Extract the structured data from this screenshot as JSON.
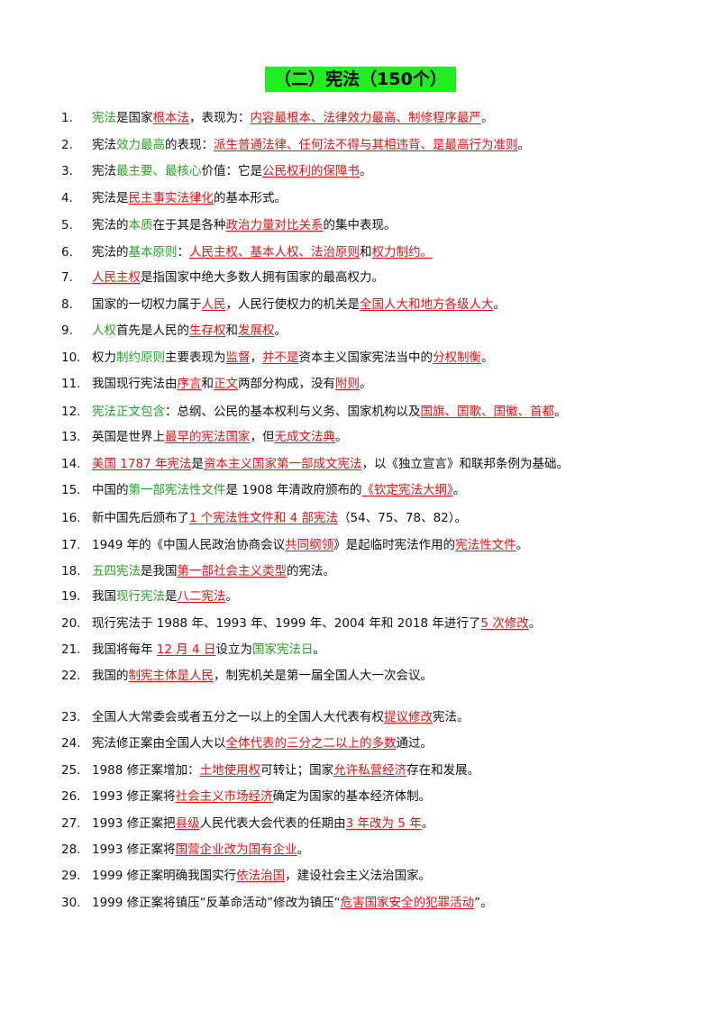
{
  "title": "（二）宪法（150个）",
  "colors": {
    "highlight": "#22ee22",
    "green": "#22a622",
    "red": "#ee1111"
  },
  "items": [
    {
      "num": "1.",
      "segs": [
        [
          "g",
          "宪法"
        ],
        [
          "n",
          "是国家"
        ],
        [
          "r",
          "根本法"
        ],
        [
          "n",
          "，表现为："
        ],
        [
          "r",
          "内容最根本、法律效力最高、制修程序最严"
        ],
        [
          "n",
          "。"
        ]
      ]
    },
    {
      "num": "2.",
      "segs": [
        [
          "n",
          "宪法"
        ],
        [
          "g",
          "效力最高"
        ],
        [
          "n",
          "的表现："
        ],
        [
          "r",
          "派生普通法律、任何法不得与其相违背、是最高行为准则"
        ],
        [
          "n",
          "。"
        ]
      ]
    },
    {
      "num": "3.",
      "segs": [
        [
          "n",
          "宪法"
        ],
        [
          "g",
          "最主要、最核心"
        ],
        [
          "n",
          "价值：它是"
        ],
        [
          "r",
          "公民权利的保障书"
        ],
        [
          "n",
          "。"
        ]
      ]
    },
    {
      "num": "4.",
      "segs": [
        [
          "n",
          "宪法是"
        ],
        [
          "r",
          "民主事实法律化"
        ],
        [
          "n",
          "的基本形式。"
        ]
      ]
    },
    {
      "num": "5.",
      "segs": [
        [
          "n",
          "宪法的"
        ],
        [
          "g",
          "本质"
        ],
        [
          "n",
          "在于其是各种"
        ],
        [
          "r",
          "政治力量对比关系"
        ],
        [
          "n",
          "的集中表现。"
        ]
      ]
    },
    {
      "num": "6.",
      "segs": [
        [
          "n",
          "宪法的"
        ],
        [
          "g",
          "基本原则"
        ],
        [
          "n",
          "："
        ],
        [
          "r",
          "人民主权、基本人权、法治原则"
        ],
        [
          "n",
          "和"
        ],
        [
          "r",
          "权力制约。"
        ]
      ]
    },
    {
      "num": "7.",
      "segs": [
        [
          "r",
          "人民主权"
        ],
        [
          "n",
          "是指国家中绝大多数人拥有国家的最高权力。"
        ]
      ]
    },
    {
      "num": "8.",
      "segs": [
        [
          "n",
          "国家的一切权力属于"
        ],
        [
          "r",
          "人民"
        ],
        [
          "n",
          "，人民行使权力的机关是"
        ],
        [
          "r",
          "全国人大和地方各级人大"
        ],
        [
          "n",
          "。"
        ]
      ]
    },
    {
      "num": "9.",
      "segs": [
        [
          "g",
          "人权"
        ],
        [
          "n",
          "首先是人民的"
        ],
        [
          "r",
          "生存权"
        ],
        [
          "n",
          "和"
        ],
        [
          "r",
          "发展权"
        ],
        [
          "n",
          "。"
        ]
      ]
    },
    {
      "num": "10.",
      "segs": [
        [
          "n",
          "权力"
        ],
        [
          "g",
          "制约原则"
        ],
        [
          "n",
          "主要表现为"
        ],
        [
          "r",
          "监督"
        ],
        [
          "n",
          "，"
        ],
        [
          "r",
          "并不是"
        ],
        [
          "n",
          "资本主义国家宪法当中的"
        ],
        [
          "r",
          "分权制衡"
        ],
        [
          "n",
          "。"
        ]
      ]
    },
    {
      "num": "11.",
      "segs": [
        [
          "n",
          "我国现行宪法由"
        ],
        [
          "r",
          "序言"
        ],
        [
          "n",
          "和"
        ],
        [
          "r",
          "正文"
        ],
        [
          "n",
          "两部分构成，没有"
        ],
        [
          "r",
          "附则"
        ],
        [
          "n",
          "。"
        ]
      ]
    },
    {
      "num": "12.",
      "segs": [
        [
          "g",
          "宪法正文包含"
        ],
        [
          "n",
          "：总纲、公民的基本权利与义务、国家机构以及"
        ],
        [
          "r",
          "国旗、国歌、国徽、首都"
        ],
        [
          "n",
          "。"
        ]
      ]
    },
    {
      "num": "13.",
      "segs": [
        [
          "n",
          "英国是世界上"
        ],
        [
          "r",
          "最早的宪法国家"
        ],
        [
          "n",
          "，但"
        ],
        [
          "r",
          "无成文法典"
        ],
        [
          "n",
          "。"
        ]
      ]
    },
    {
      "num": "14.",
      "segs": [
        [
          "r",
          "美国 1787 年宪法"
        ],
        [
          "n",
          "是"
        ],
        [
          "r",
          "资本主义国家第一部成文宪法"
        ],
        [
          "n",
          "，以《独立宣言》和联邦条例为基础。"
        ]
      ]
    },
    {
      "num": "15.",
      "segs": [
        [
          "n",
          "中国的"
        ],
        [
          "g",
          "第一部宪法性文件"
        ],
        [
          "n",
          "是 1908 年清政府颁布的"
        ],
        [
          "r",
          "《钦定宪法大纲》"
        ],
        [
          "n",
          "。"
        ]
      ]
    },
    {
      "num": "16.",
      "segs": [
        [
          "n",
          "新中国先后颁布了"
        ],
        [
          "r",
          "1 个宪法性文件和 4 部宪法"
        ],
        [
          "n",
          "（54、75、78、82）。"
        ]
      ]
    },
    {
      "num": "17.",
      "segs": [
        [
          "n",
          "1949 年的《中国人民政治协商会议"
        ],
        [
          "r",
          "共同纲领"
        ],
        [
          "n",
          "》是起临时宪法作用的"
        ],
        [
          "r",
          "宪法性文件"
        ],
        [
          "n",
          "。"
        ]
      ]
    },
    {
      "num": "18.",
      "segs": [
        [
          "g",
          "五四宪法"
        ],
        [
          "n",
          "是我国"
        ],
        [
          "r",
          "第一部社会主义类型"
        ],
        [
          "n",
          "的宪法。"
        ]
      ]
    },
    {
      "num": "19.",
      "segs": [
        [
          "n",
          "我国"
        ],
        [
          "g",
          "现行宪法"
        ],
        [
          "n",
          "是"
        ],
        [
          "r",
          "八二宪法"
        ],
        [
          "n",
          "。"
        ]
      ]
    },
    {
      "num": "20.",
      "segs": [
        [
          "n",
          "现行宪法于 1988 年、1993 年、1999 年、2004 年和 2018 年进行了"
        ],
        [
          "r",
          "5 次修改"
        ],
        [
          "n",
          "。"
        ]
      ]
    },
    {
      "num": "21.",
      "segs": [
        [
          "n",
          "我国将每年 "
        ],
        [
          "r",
          "12 月 4 日"
        ],
        [
          "n",
          "设立为"
        ],
        [
          "g",
          "国家宪法日"
        ],
        [
          "n",
          "。"
        ]
      ]
    },
    {
      "num": "22.",
      "segs": [
        [
          "n",
          "我国的"
        ],
        [
          "r",
          "制宪主体是人民"
        ],
        [
          "n",
          "，制宪机关是第一届全国人大一次会议。"
        ]
      ]
    },
    {
      "num": "23.",
      "segs": [
        [
          "n",
          "全国人大常委会或者五分之一以上的全国人大代表有权"
        ],
        [
          "r",
          "提议修改"
        ],
        [
          "n",
          "宪法。"
        ]
      ]
    },
    {
      "num": "24.",
      "segs": [
        [
          "n",
          "宪法修正案由全国人大以"
        ],
        [
          "r",
          "全体代表的三分之二以上的多数"
        ],
        [
          "n",
          "通过。"
        ]
      ]
    },
    {
      "num": "25.",
      "segs": [
        [
          "n",
          "1988 修正案增加："
        ],
        [
          "r",
          "土地使用权"
        ],
        [
          "n",
          "可转让；国家"
        ],
        [
          "r",
          "允许私营经济"
        ],
        [
          "n",
          "存在和发展。"
        ]
      ]
    },
    {
      "num": "26.",
      "segs": [
        [
          "n",
          "1993 修正案将"
        ],
        [
          "r",
          "社会主义市场经济"
        ],
        [
          "n",
          "确定为国家的基本经济体制。"
        ]
      ]
    },
    {
      "num": "27.",
      "segs": [
        [
          "n",
          "1993 修正案把"
        ],
        [
          "r",
          "县级"
        ],
        [
          "n",
          "人民代表大会代表的任期由"
        ],
        [
          "r",
          "3 年改为 5 年"
        ],
        [
          "n",
          "。"
        ]
      ]
    },
    {
      "num": "28.",
      "segs": [
        [
          "n",
          "1993 修正案将"
        ],
        [
          "r",
          "国营企业改为国有企业"
        ],
        [
          "n",
          "。"
        ]
      ]
    },
    {
      "num": "29.",
      "segs": [
        [
          "n",
          "1999 修正案明确我国实行"
        ],
        [
          "r",
          "依法治国"
        ],
        [
          "n",
          "，建设社会主义法治国家。"
        ]
      ]
    },
    {
      "num": "30.",
      "segs": [
        [
          "n",
          "1999 修正案将镇压“反革命活动”修改为镇压“"
        ],
        [
          "r",
          "危害国家安全的犯罪活动"
        ],
        [
          "n",
          "”。"
        ]
      ]
    }
  ]
}
